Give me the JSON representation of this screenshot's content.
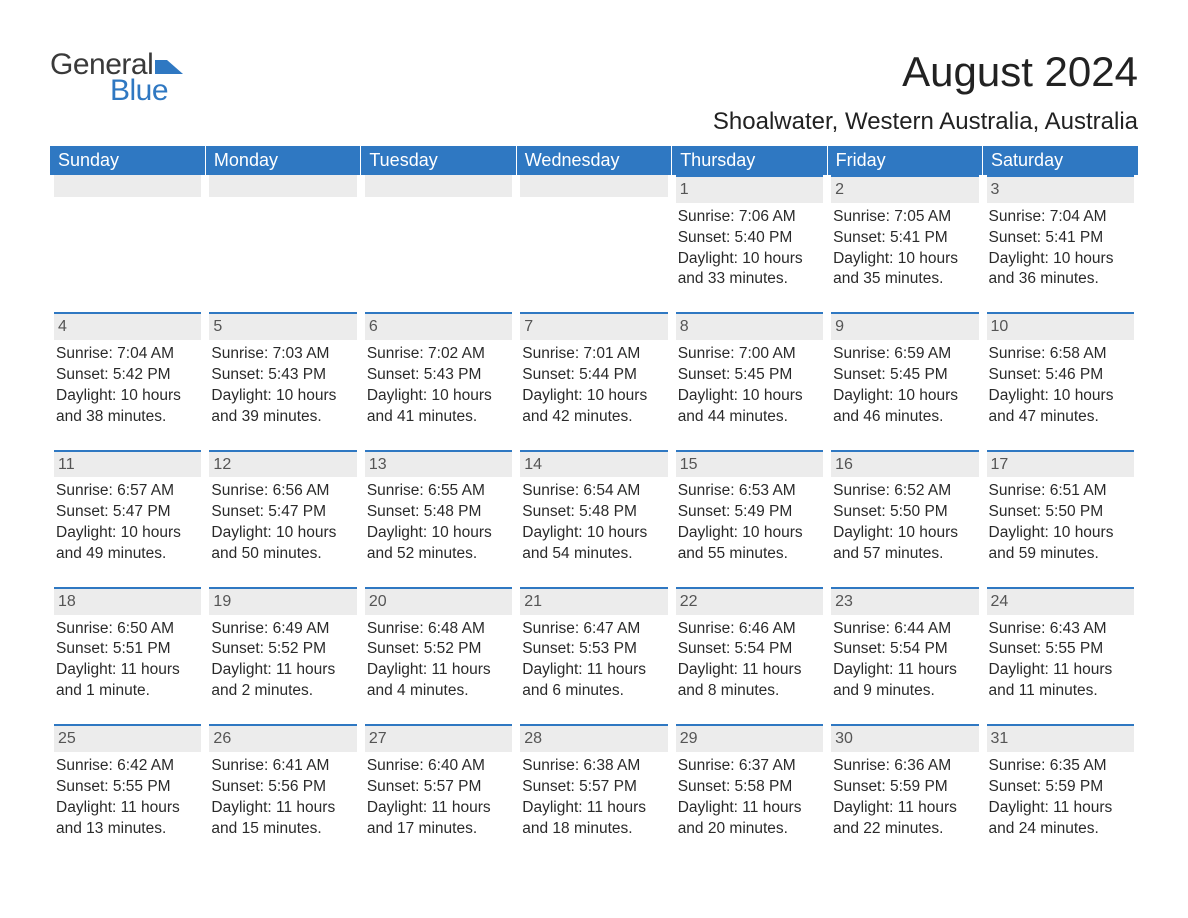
{
  "brand": {
    "word1": "General",
    "word2": "Blue",
    "mark_color": "#2f78c2"
  },
  "title": "August 2024",
  "location": "Shoalwater, Western Australia, Australia",
  "weekday_headers": [
    "Sunday",
    "Monday",
    "Tuesday",
    "Wednesday",
    "Thursday",
    "Friday",
    "Saturday"
  ],
  "colors": {
    "header_bg": "#2f78c2",
    "header_text": "#ffffff",
    "date_bar_bg": "#ececec",
    "date_bar_border": "#2f78c2",
    "text": "#2a2a2a",
    "page_bg": "#ffffff"
  },
  "weeks": [
    [
      null,
      null,
      null,
      null,
      {
        "date": "1",
        "sunrise": "Sunrise: 7:06 AM",
        "sunset": "Sunset: 5:40 PM",
        "daylight1": "Daylight: 10 hours",
        "daylight2": "and 33 minutes."
      },
      {
        "date": "2",
        "sunrise": "Sunrise: 7:05 AM",
        "sunset": "Sunset: 5:41 PM",
        "daylight1": "Daylight: 10 hours",
        "daylight2": "and 35 minutes."
      },
      {
        "date": "3",
        "sunrise": "Sunrise: 7:04 AM",
        "sunset": "Sunset: 5:41 PM",
        "daylight1": "Daylight: 10 hours",
        "daylight2": "and 36 minutes."
      }
    ],
    [
      {
        "date": "4",
        "sunrise": "Sunrise: 7:04 AM",
        "sunset": "Sunset: 5:42 PM",
        "daylight1": "Daylight: 10 hours",
        "daylight2": "and 38 minutes."
      },
      {
        "date": "5",
        "sunrise": "Sunrise: 7:03 AM",
        "sunset": "Sunset: 5:43 PM",
        "daylight1": "Daylight: 10 hours",
        "daylight2": "and 39 minutes."
      },
      {
        "date": "6",
        "sunrise": "Sunrise: 7:02 AM",
        "sunset": "Sunset: 5:43 PM",
        "daylight1": "Daylight: 10 hours",
        "daylight2": "and 41 minutes."
      },
      {
        "date": "7",
        "sunrise": "Sunrise: 7:01 AM",
        "sunset": "Sunset: 5:44 PM",
        "daylight1": "Daylight: 10 hours",
        "daylight2": "and 42 minutes."
      },
      {
        "date": "8",
        "sunrise": "Sunrise: 7:00 AM",
        "sunset": "Sunset: 5:45 PM",
        "daylight1": "Daylight: 10 hours",
        "daylight2": "and 44 minutes."
      },
      {
        "date": "9",
        "sunrise": "Sunrise: 6:59 AM",
        "sunset": "Sunset: 5:45 PM",
        "daylight1": "Daylight: 10 hours",
        "daylight2": "and 46 minutes."
      },
      {
        "date": "10",
        "sunrise": "Sunrise: 6:58 AM",
        "sunset": "Sunset: 5:46 PM",
        "daylight1": "Daylight: 10 hours",
        "daylight2": "and 47 minutes."
      }
    ],
    [
      {
        "date": "11",
        "sunrise": "Sunrise: 6:57 AM",
        "sunset": "Sunset: 5:47 PM",
        "daylight1": "Daylight: 10 hours",
        "daylight2": "and 49 minutes."
      },
      {
        "date": "12",
        "sunrise": "Sunrise: 6:56 AM",
        "sunset": "Sunset: 5:47 PM",
        "daylight1": "Daylight: 10 hours",
        "daylight2": "and 50 minutes."
      },
      {
        "date": "13",
        "sunrise": "Sunrise: 6:55 AM",
        "sunset": "Sunset: 5:48 PM",
        "daylight1": "Daylight: 10 hours",
        "daylight2": "and 52 minutes."
      },
      {
        "date": "14",
        "sunrise": "Sunrise: 6:54 AM",
        "sunset": "Sunset: 5:48 PM",
        "daylight1": "Daylight: 10 hours",
        "daylight2": "and 54 minutes."
      },
      {
        "date": "15",
        "sunrise": "Sunrise: 6:53 AM",
        "sunset": "Sunset: 5:49 PM",
        "daylight1": "Daylight: 10 hours",
        "daylight2": "and 55 minutes."
      },
      {
        "date": "16",
        "sunrise": "Sunrise: 6:52 AM",
        "sunset": "Sunset: 5:50 PM",
        "daylight1": "Daylight: 10 hours",
        "daylight2": "and 57 minutes."
      },
      {
        "date": "17",
        "sunrise": "Sunrise: 6:51 AM",
        "sunset": "Sunset: 5:50 PM",
        "daylight1": "Daylight: 10 hours",
        "daylight2": "and 59 minutes."
      }
    ],
    [
      {
        "date": "18",
        "sunrise": "Sunrise: 6:50 AM",
        "sunset": "Sunset: 5:51 PM",
        "daylight1": "Daylight: 11 hours",
        "daylight2": "and 1 minute."
      },
      {
        "date": "19",
        "sunrise": "Sunrise: 6:49 AM",
        "sunset": "Sunset: 5:52 PM",
        "daylight1": "Daylight: 11 hours",
        "daylight2": "and 2 minutes."
      },
      {
        "date": "20",
        "sunrise": "Sunrise: 6:48 AM",
        "sunset": "Sunset: 5:52 PM",
        "daylight1": "Daylight: 11 hours",
        "daylight2": "and 4 minutes."
      },
      {
        "date": "21",
        "sunrise": "Sunrise: 6:47 AM",
        "sunset": "Sunset: 5:53 PM",
        "daylight1": "Daylight: 11 hours",
        "daylight2": "and 6 minutes."
      },
      {
        "date": "22",
        "sunrise": "Sunrise: 6:46 AM",
        "sunset": "Sunset: 5:54 PM",
        "daylight1": "Daylight: 11 hours",
        "daylight2": "and 8 minutes."
      },
      {
        "date": "23",
        "sunrise": "Sunrise: 6:44 AM",
        "sunset": "Sunset: 5:54 PM",
        "daylight1": "Daylight: 11 hours",
        "daylight2": "and 9 minutes."
      },
      {
        "date": "24",
        "sunrise": "Sunrise: 6:43 AM",
        "sunset": "Sunset: 5:55 PM",
        "daylight1": "Daylight: 11 hours",
        "daylight2": "and 11 minutes."
      }
    ],
    [
      {
        "date": "25",
        "sunrise": "Sunrise: 6:42 AM",
        "sunset": "Sunset: 5:55 PM",
        "daylight1": "Daylight: 11 hours",
        "daylight2": "and 13 minutes."
      },
      {
        "date": "26",
        "sunrise": "Sunrise: 6:41 AM",
        "sunset": "Sunset: 5:56 PM",
        "daylight1": "Daylight: 11 hours",
        "daylight2": "and 15 minutes."
      },
      {
        "date": "27",
        "sunrise": "Sunrise: 6:40 AM",
        "sunset": "Sunset: 5:57 PM",
        "daylight1": "Daylight: 11 hours",
        "daylight2": "and 17 minutes."
      },
      {
        "date": "28",
        "sunrise": "Sunrise: 6:38 AM",
        "sunset": "Sunset: 5:57 PM",
        "daylight1": "Daylight: 11 hours",
        "daylight2": "and 18 minutes."
      },
      {
        "date": "29",
        "sunrise": "Sunrise: 6:37 AM",
        "sunset": "Sunset: 5:58 PM",
        "daylight1": "Daylight: 11 hours",
        "daylight2": "and 20 minutes."
      },
      {
        "date": "30",
        "sunrise": "Sunrise: 6:36 AM",
        "sunset": "Sunset: 5:59 PM",
        "daylight1": "Daylight: 11 hours",
        "daylight2": "and 22 minutes."
      },
      {
        "date": "31",
        "sunrise": "Sunrise: 6:35 AM",
        "sunset": "Sunset: 5:59 PM",
        "daylight1": "Daylight: 11 hours",
        "daylight2": "and 24 minutes."
      }
    ]
  ]
}
